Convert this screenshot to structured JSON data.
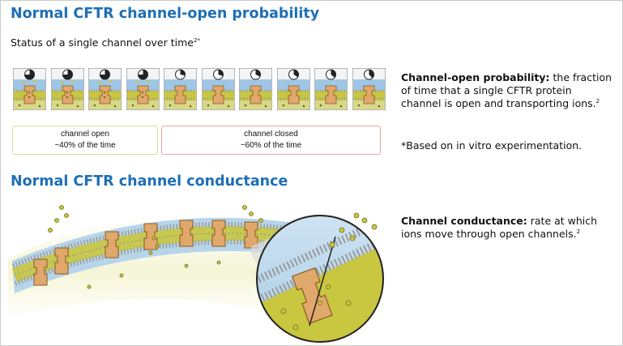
{
  "section_open_probability": {
    "title": "Normal CFTR channel-open probability",
    "subtitle": "Status of a single channel over time",
    "subtitle_sup": "2*",
    "panels": [
      {
        "state": "open"
      },
      {
        "state": "open"
      },
      {
        "state": "open"
      },
      {
        "state": "open"
      },
      {
        "state": "closed"
      },
      {
        "state": "closed"
      },
      {
        "state": "closed"
      },
      {
        "state": "closed"
      },
      {
        "state": "closed"
      },
      {
        "state": "closed"
      }
    ],
    "open_box": {
      "line1": "channel open",
      "line2": "~40% of the time"
    },
    "closed_box": {
      "line1": "channel closed",
      "line2": "~60% of the time"
    },
    "definition_term": "Channel-open probability:",
    "definition_text": " the fraction of time that a single CFTR protein channel is open and transporting ions.",
    "definition_sup": "2",
    "footnote": "*Based on in vitro experimentation."
  },
  "section_conductance": {
    "title": "Normal CFTR channel conductance",
    "definition_term": "Channel conductance:",
    "definition_text": " rate at which ions move through open channels.",
    "definition_sup": "2"
  },
  "colors": {
    "title_blue": "#1e6fb5",
    "protein_orange": "#e0a86a",
    "membrane_yellow": "#c9c640",
    "sky_blue": "#7fb6dd",
    "open_border": "#d9dc9e",
    "closed_border": "#e9a2a2"
  }
}
